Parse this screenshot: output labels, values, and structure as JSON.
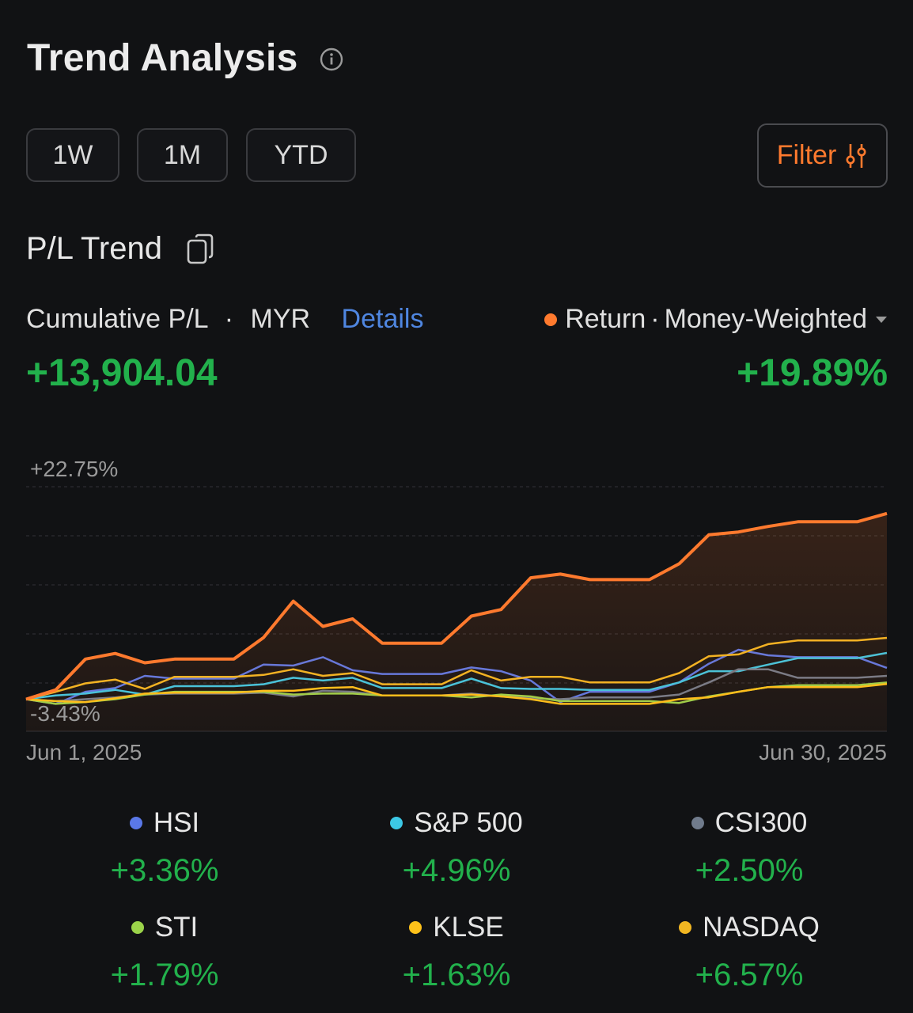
{
  "header": {
    "title": "Trend Analysis",
    "info_icon": "info-icon"
  },
  "ranges": [
    {
      "label": "1W"
    },
    {
      "label": "1M"
    },
    {
      "label": "YTD"
    }
  ],
  "filter": {
    "label": "Filter",
    "icon": "sliders-icon"
  },
  "section": {
    "title": "P/L Trend",
    "icon": "copy-icon"
  },
  "metric": {
    "label": "Cumulative P/L",
    "separator": "·",
    "currency": "MYR",
    "details_label": "Details",
    "value": "+13,904.04"
  },
  "return_selector": {
    "label_a": "Return",
    "separator": "·",
    "label_b": "Money-Weighted",
    "value": "+19.89%",
    "dot_color": "#ff7a2e"
  },
  "colors": {
    "positive": "#22b14c",
    "accent": "#ff7a2e",
    "link": "#4f86e0"
  },
  "chart_data": {
    "type": "line",
    "ylim": [
      -3.43,
      22.75
    ],
    "y_ticks": [
      "+22.75%",
      "-3.43%"
    ],
    "x_ticks": [
      "Jun 1, 2025",
      "Jun 30, 2025"
    ],
    "x_dates": [
      "Jun 1, 2025",
      "Jun 2, 2025",
      "Jun 3, 2025",
      "Jun 4, 2025",
      "Jun 5, 2025",
      "Jun 6, 2025",
      "Jun 7, 2025",
      "Jun 8, 2025",
      "Jun 9, 2025",
      "Jun 10, 2025",
      "Jun 11, 2025",
      "Jun 12, 2025",
      "Jun 13, 2025",
      "Jun 14, 2025",
      "Jun 15, 2025",
      "Jun 16, 2025",
      "Jun 17, 2025",
      "Jun 18, 2025",
      "Jun 19, 2025",
      "Jun 20, 2025",
      "Jun 21, 2025",
      "Jun 22, 2025",
      "Jun 23, 2025",
      "Jun 24, 2025",
      "Jun 25, 2025",
      "Jun 26, 2025",
      "Jun 27, 2025",
      "Jun 28, 2025",
      "Jun 29, 2025",
      "Jun 30, 2025"
    ],
    "series": [
      {
        "name": "Return · Money-Weighted",
        "color": "#ff7a2e",
        "width": 4,
        "fill": true,
        "values": [
          0.0,
          1.0,
          4.3,
          4.9,
          3.9,
          4.3,
          4.3,
          4.3,
          6.6,
          10.5,
          7.8,
          8.6,
          6.0,
          6.0,
          6.0,
          8.9,
          9.6,
          13.0,
          13.4,
          12.8,
          12.8,
          12.8,
          14.5,
          17.6,
          17.9,
          18.5,
          19.0,
          19.0,
          19.0,
          19.89
        ]
      },
      {
        "name": "HSI",
        "color": "#5a78e8",
        "width": 2.5,
        "values": [
          0.0,
          -0.5,
          0.8,
          1.2,
          2.5,
          2.2,
          2.2,
          2.2,
          3.7,
          3.6,
          4.5,
          3.1,
          2.7,
          2.7,
          2.7,
          3.4,
          3.0,
          2.0,
          -0.3,
          0.8,
          0.8,
          0.8,
          1.8,
          3.8,
          5.3,
          4.7,
          4.5,
          4.5,
          4.5,
          3.36
        ]
      },
      {
        "name": "S&P 500",
        "color": "#3cc8e6",
        "width": 2.5,
        "values": [
          0.0,
          0.4,
          0.6,
          1.0,
          0.5,
          1.4,
          1.4,
          1.4,
          1.6,
          2.3,
          2.0,
          2.3,
          1.2,
          1.2,
          1.2,
          2.2,
          1.2,
          1.1,
          1.1,
          1.0,
          1.0,
          1.0,
          1.8,
          3.0,
          3.0,
          3.7,
          4.4,
          4.4,
          4.4,
          4.96
        ]
      },
      {
        "name": "CSI300",
        "color": "#707b8c",
        "width": 2.5,
        "values": [
          0.0,
          -0.2,
          0.0,
          0.2,
          0.5,
          0.6,
          0.6,
          0.6,
          0.7,
          0.3,
          0.9,
          0.8,
          0.4,
          0.4,
          0.4,
          0.6,
          0.3,
          0.1,
          0.0,
          0.2,
          0.2,
          0.2,
          0.5,
          1.8,
          3.2,
          3.2,
          2.3,
          2.3,
          2.3,
          2.5
        ]
      },
      {
        "name": "STI",
        "color": "#9bd34a",
        "width": 2.5,
        "values": [
          0.0,
          -0.5,
          -0.3,
          0.0,
          0.5,
          0.8,
          0.8,
          0.8,
          0.8,
          0.5,
          0.6,
          0.6,
          0.4,
          0.4,
          0.4,
          0.2,
          0.5,
          0.3,
          -0.2,
          -0.2,
          -0.2,
          -0.2,
          -0.4,
          0.3,
          0.8,
          1.3,
          1.5,
          1.5,
          1.5,
          1.79
        ]
      },
      {
        "name": "KLSE",
        "color": "#ffc21a",
        "width": 2.5,
        "values": [
          0.0,
          -0.2,
          -0.3,
          0.1,
          0.6,
          0.7,
          0.7,
          0.7,
          0.9,
          0.9,
          1.2,
          1.3,
          0.4,
          0.4,
          0.4,
          0.5,
          0.3,
          0.0,
          -0.5,
          -0.5,
          -0.5,
          -0.5,
          0.0,
          0.2,
          0.8,
          1.3,
          1.3,
          1.3,
          1.3,
          1.63
        ]
      },
      {
        "name": "NASDAQ",
        "color": "#f2b722",
        "width": 2.5,
        "values": [
          0.0,
          0.8,
          1.7,
          2.1,
          1.1,
          2.4,
          2.4,
          2.4,
          2.6,
          3.2,
          2.5,
          2.8,
          1.6,
          1.6,
          1.6,
          3.1,
          2.0,
          2.4,
          2.4,
          1.8,
          1.8,
          1.8,
          2.8,
          4.6,
          4.8,
          5.9,
          6.3,
          6.3,
          6.3,
          6.57
        ]
      }
    ],
    "grid": true,
    "legend": "bottom"
  },
  "legend": [
    {
      "name": "HSI",
      "value": "+3.36%",
      "color": "#5a78e8"
    },
    {
      "name": "S&P 500",
      "value": "+4.96%",
      "color": "#3cc8e6"
    },
    {
      "name": "CSI300",
      "value": "+2.50%",
      "color": "#707b8c"
    },
    {
      "name": "STI",
      "value": "+1.79%",
      "color": "#9bd34a"
    },
    {
      "name": "KLSE",
      "value": "+1.63%",
      "color": "#ffc21a"
    },
    {
      "name": "NASDAQ",
      "value": "+6.57%",
      "color": "#f2b722"
    }
  ]
}
